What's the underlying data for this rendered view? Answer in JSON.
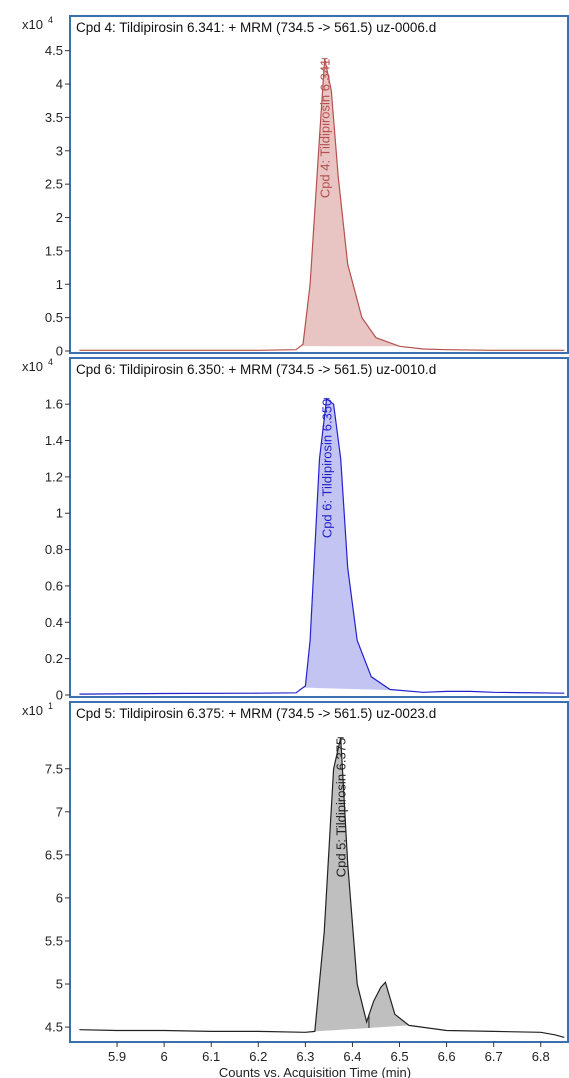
{
  "chart_data": [
    {
      "type": "area",
      "title": "Cpd 4: Tildipirosin 6.341: + MRM (734.5 -> 561.5) uz-0006.d",
      "multiplier": "x10",
      "multiplier_exp": "4",
      "peak_label": "Cpd 4: Tildipirosin 6.341",
      "ylim": [
        0,
        4.6
      ],
      "yticks": [
        "0",
        "0.5",
        "1",
        "1.5",
        "2",
        "2.5",
        "3",
        "3.5",
        "4",
        "4.5"
      ],
      "color": "#b5504f",
      "fill": "#e8c4c3",
      "x": [
        5.82,
        6.0,
        6.2,
        6.28,
        6.295,
        6.31,
        6.33,
        6.341,
        6.355,
        6.37,
        6.39,
        6.42,
        6.45,
        6.5,
        6.55,
        6.6,
        6.7,
        6.85
      ],
      "y": [
        0.01,
        0.01,
        0.01,
        0.02,
        0.1,
        1.0,
        3.2,
        4.38,
        3.9,
        2.6,
        1.3,
        0.5,
        0.2,
        0.07,
        0.03,
        0.02,
        0.01,
        0.01
      ],
      "shade": [
        6.29,
        6.5
      ]
    },
    {
      "type": "area",
      "title": "Cpd 6: Tildipirosin 6.350: + MRM (734.5 -> 561.5) uz-0010.d",
      "multiplier": "x10",
      "multiplier_exp": "4",
      "peak_label": "Cpd 6: Tildipirosin 6.350",
      "ylim": [
        0,
        1.7
      ],
      "yticks": [
        "0",
        "0.2",
        "0.4",
        "0.6",
        "0.8",
        "1",
        "1.2",
        "1.4",
        "1.6"
      ],
      "color": "#2222cc",
      "fill": "#c4c4f2",
      "x": [
        5.82,
        6.0,
        6.2,
        6.28,
        6.3,
        6.31,
        6.33,
        6.345,
        6.36,
        6.375,
        6.39,
        6.41,
        6.44,
        6.48,
        6.55,
        6.6,
        6.65,
        6.7,
        6.85
      ],
      "y": [
        0.005,
        0.008,
        0.01,
        0.012,
        0.05,
        0.3,
        1.3,
        1.63,
        1.6,
        1.3,
        0.7,
        0.3,
        0.1,
        0.03,
        0.015,
        0.02,
        0.02,
        0.015,
        0.01
      ],
      "shade": [
        6.295,
        6.5
      ]
    },
    {
      "type": "area",
      "title": "Cpd 5: Tildipirosin 6.375: + MRM (734.5 -> 561.5) uz-0023.d",
      "multiplier": "x10",
      "multiplier_exp": "1",
      "peak_label": "Cpd 5: Tildipirosin 6.375",
      "ylim": [
        4.35,
        7.95
      ],
      "yticks": [
        "4.5",
        "5",
        "5.5",
        "6",
        "6.5",
        "7",
        "7.5"
      ],
      "color": "#222222",
      "fill": "#bfbfbf",
      "x": [
        5.82,
        5.9,
        6.0,
        6.1,
        6.2,
        6.3,
        6.32,
        6.34,
        6.36,
        6.375,
        6.39,
        6.41,
        6.43,
        6.445,
        6.46,
        6.47,
        6.49,
        6.52,
        6.6,
        6.7,
        6.8,
        6.83,
        6.85
      ],
      "y": [
        4.47,
        4.46,
        4.46,
        4.45,
        4.45,
        4.44,
        4.45,
        5.6,
        7.5,
        7.86,
        6.4,
        5.0,
        4.56,
        4.8,
        4.96,
        5.02,
        4.65,
        4.52,
        4.46,
        4.45,
        4.44,
        4.41,
        4.38
      ],
      "shade": [
        6.32,
        6.52
      ],
      "split": 6.435
    }
  ],
  "x_axis": {
    "ticks": [
      "5.9",
      "6",
      "6.1",
      "6.2",
      "6.3",
      "6.4",
      "6.5",
      "6.6",
      "6.7",
      "6.8"
    ],
    "xlim": [
      5.8,
      6.86
    ],
    "label": "Counts vs. Acquisition Time (min)"
  }
}
